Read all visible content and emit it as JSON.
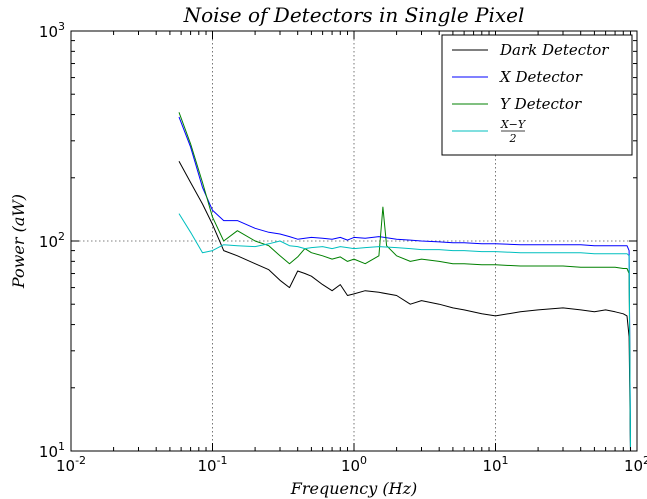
{
  "chart_data": {
    "type": "line",
    "title": "Noise of Detectors in Single Pixel",
    "xlabel": "Frequency (Hz)",
    "ylabel": "Power (aW)",
    "xscale": "log",
    "yscale": "log",
    "xlim": [
      0.01,
      100
    ],
    "ylim": [
      10,
      1000
    ],
    "xticks": [
      {
        "value": 0.01,
        "base": "10",
        "exp": "-2"
      },
      {
        "value": 0.1,
        "base": "10",
        "exp": "-1"
      },
      {
        "value": 1,
        "base": "10",
        "exp": "0"
      },
      {
        "value": 10,
        "base": "10",
        "exp": "1"
      },
      {
        "value": 100,
        "base": "10",
        "exp": "2"
      }
    ],
    "yticks": [
      {
        "value": 10,
        "base": "10",
        "exp": "1"
      },
      {
        "value": 100,
        "base": "10",
        "exp": "2"
      },
      {
        "value": 1000,
        "base": "10",
        "exp": "3"
      }
    ],
    "grid": true,
    "legend_position": "top-right",
    "series": [
      {
        "name": "Dark Detector",
        "color": "#000000",
        "x": [
          0.058,
          0.07,
          0.085,
          0.1,
          0.12,
          0.15,
          0.2,
          0.25,
          0.3,
          0.35,
          0.4,
          0.45,
          0.5,
          0.6,
          0.7,
          0.8,
          0.9,
          1.0,
          1.2,
          1.5,
          2.0,
          2.5,
          3.0,
          4.0,
          5.0,
          6.0,
          8.0,
          10,
          15,
          20,
          30,
          40,
          50,
          60,
          70,
          80,
          85,
          88,
          90
        ],
        "y": [
          240,
          190,
          150,
          120,
          90,
          85,
          78,
          73,
          65,
          60,
          72,
          70,
          68,
          62,
          58,
          62,
          55,
          56,
          58,
          57,
          55,
          50,
          52,
          50,
          48,
          47,
          45,
          44,
          46,
          47,
          48,
          47,
          46,
          47,
          46,
          45,
          44,
          35,
          10
        ]
      },
      {
        "name": "X Detector",
        "color": "#0000ff",
        "x": [
          0.058,
          0.07,
          0.085,
          0.1,
          0.12,
          0.15,
          0.2,
          0.25,
          0.3,
          0.35,
          0.4,
          0.45,
          0.5,
          0.6,
          0.7,
          0.8,
          0.9,
          1.0,
          1.2,
          1.5,
          2.0,
          2.5,
          3.0,
          4.0,
          5.0,
          6.0,
          8.0,
          10,
          15,
          20,
          30,
          40,
          50,
          60,
          70,
          80,
          85,
          88,
          90
        ],
        "y": [
          390,
          280,
          180,
          140,
          125,
          125,
          115,
          110,
          108,
          105,
          102,
          103,
          104,
          103,
          102,
          104,
          101,
          104,
          103,
          105,
          102,
          101,
          100,
          99,
          98,
          98,
          97,
          97,
          96,
          96,
          96,
          96,
          95,
          95,
          95,
          95,
          95,
          90,
          10
        ]
      },
      {
        "name": "Y Detector",
        "color": "#008000",
        "x": [
          0.058,
          0.07,
          0.085,
          0.1,
          0.12,
          0.15,
          0.2,
          0.25,
          0.3,
          0.35,
          0.4,
          0.45,
          0.5,
          0.6,
          0.7,
          0.8,
          0.9,
          1.0,
          1.2,
          1.5,
          1.6,
          1.7,
          2.0,
          2.5,
          3.0,
          4.0,
          5.0,
          6.0,
          8.0,
          10,
          15,
          20,
          30,
          40,
          50,
          60,
          70,
          80,
          85,
          88,
          90
        ],
        "y": [
          410,
          290,
          190,
          130,
          100,
          112,
          100,
          95,
          85,
          78,
          84,
          92,
          88,
          85,
          82,
          84,
          80,
          82,
          78,
          85,
          145,
          95,
          85,
          80,
          82,
          80,
          78,
          78,
          77,
          77,
          76,
          76,
          76,
          75,
          75,
          75,
          75,
          74,
          74,
          70,
          10
        ]
      },
      {
        "name": "(X-Y)/2",
        "color": "#00bfbf",
        "x": [
          0.058,
          0.07,
          0.085,
          0.1,
          0.12,
          0.15,
          0.2,
          0.25,
          0.3,
          0.35,
          0.4,
          0.45,
          0.5,
          0.6,
          0.7,
          0.8,
          0.9,
          1.0,
          1.2,
          1.5,
          2.0,
          2.5,
          3.0,
          4.0,
          5.0,
          6.0,
          8.0,
          10,
          15,
          20,
          30,
          40,
          50,
          60,
          70,
          80,
          85,
          88,
          90
        ],
        "y": [
          135,
          110,
          88,
          90,
          96,
          95,
          94,
          97,
          100,
          95,
          94,
          92,
          93,
          94,
          92,
          94,
          93,
          92,
          93,
          94,
          93,
          92,
          91,
          91,
          90,
          90,
          89,
          89,
          88,
          88,
          88,
          88,
          87,
          87,
          87,
          87,
          87,
          85,
          10
        ]
      }
    ]
  }
}
